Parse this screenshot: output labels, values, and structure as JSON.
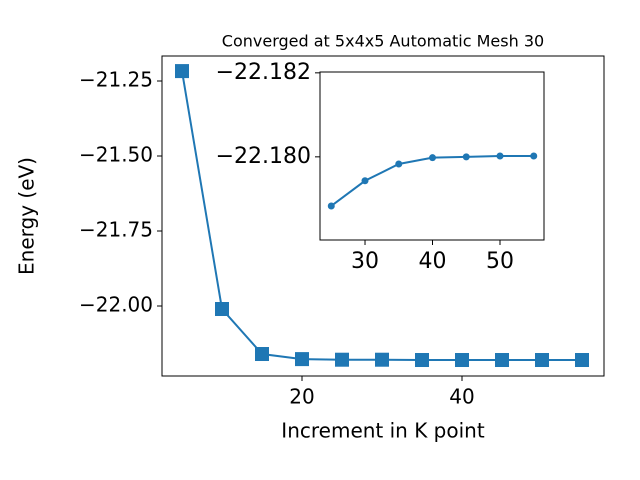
{
  "chart_data": [
    {
      "type": "line",
      "title": "Converged at 5x4x5 Automatic Mesh 30",
      "x_label": "Increment in K point",
      "y_label": "Energy (eV)",
      "x": [
        5,
        10,
        15,
        20,
        25,
        30,
        35,
        40,
        45,
        50,
        55
      ],
      "series": [
        {
          "name": "Energy",
          "color": "#1f77b4",
          "marker": "square",
          "values": [
            -21.217,
            -22.01,
            -22.16,
            -22.177,
            -22.179,
            -22.179,
            -22.18,
            -22.18,
            -22.18,
            -22.18,
            -22.18
          ]
        }
      ],
      "xlim": [
        2.5,
        57.75
      ],
      "xticks": [
        20,
        40
      ],
      "ylim": [
        -22.2333,
        -21.1667
      ],
      "yticks": [
        {
          "value": -22.0,
          "label": "−22.00"
        },
        {
          "value": -21.75,
          "label": "−21.75"
        },
        {
          "value": -21.5,
          "label": "−21.50"
        },
        {
          "value": -21.25,
          "label": "−21.25"
        }
      ]
    },
    {
      "type": "line",
      "x": [
        25,
        30,
        35,
        40,
        45,
        50,
        55
      ],
      "series": [
        {
          "name": "Energy",
          "color": "#1f77b4",
          "marker": "circle",
          "values": [
            -22.17883,
            -22.17943,
            -22.17983,
            -22.17998,
            -22.18,
            -22.18002,
            -22.18002
          ]
        }
      ],
      "xlim": [
        23.33,
        56.52
      ],
      "xticks": [
        30,
        40,
        50
      ],
      "ylim": [
        -22.17802,
        -22.18202
      ],
      "yticks": [
        {
          "value": -22.18,
          "label": "−22.180"
        },
        {
          "value": -22.182,
          "label": "−22.182"
        }
      ]
    }
  ]
}
